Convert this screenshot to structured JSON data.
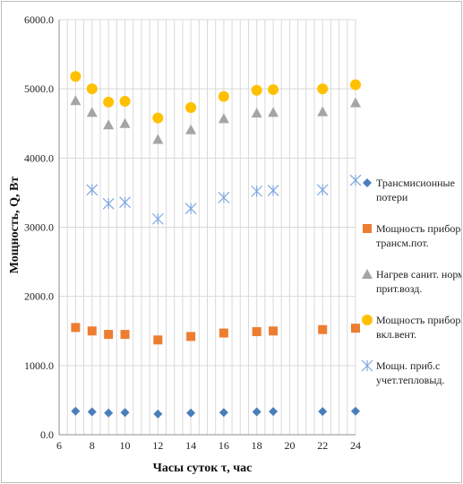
{
  "chart_data": {
    "type": "scatter",
    "xlabel": "Часы суток τ, час",
    "ylabel": "Мощность, Q, Вт",
    "xlim": [
      6,
      24
    ],
    "ylim": [
      0,
      6000
    ],
    "x_major_ticks": [
      6,
      8,
      10,
      12,
      14,
      16,
      18,
      20,
      22,
      24
    ],
    "x_minor_step": 0.5,
    "y_ticks": [
      0,
      1000,
      2000,
      3000,
      4000,
      5000,
      6000
    ],
    "y_tick_labels": [
      "0.0",
      "1000.0",
      "2000.0",
      "3000.0",
      "4000.0",
      "5000.0",
      "6000.0"
    ],
    "grid": true,
    "legend_position": "right",
    "x": [
      7,
      8,
      9,
      10,
      12,
      14,
      16,
      18,
      19,
      22,
      24
    ],
    "series": [
      {
        "name": "Трансмисионные потери",
        "legend_lines": [
          "Трансмисионные",
          "потери"
        ],
        "marker": "diamond",
        "color": "#4a7ebb",
        "values": [
          340,
          330,
          315,
          320,
          300,
          315,
          320,
          330,
          335,
          335,
          340
        ]
      },
      {
        "name": "Мощность прибора с трансм.пот.",
        "legend_lines": [
          "Мощность прибора с",
          "трансм.пот."
        ],
        "marker": "square",
        "color": "#ed7d31",
        "values": [
          1550,
          1500,
          1450,
          1450,
          1370,
          1420,
          1470,
          1490,
          1500,
          1520,
          1540
        ]
      },
      {
        "name": "Нагрев санит. нормы прит.возд.",
        "legend_lines": [
          "Нагрев санит. нормы",
          "прит.возд."
        ],
        "marker": "triangle",
        "color": "#a5a5a5",
        "values": [
          4830,
          4660,
          4480,
          4500,
          4270,
          4410,
          4570,
          4650,
          4660,
          4670,
          4800
        ]
      },
      {
        "name": "Мощность прибора с вкл.вент.",
        "legend_lines": [
          "Мощность прибора с",
          "вкл.вент."
        ],
        "marker": "circle",
        "color": "#ffc000",
        "values": [
          5180,
          5000,
          4810,
          4820,
          4580,
          4730,
          4890,
          4980,
          4990,
          5000,
          5060
        ]
      },
      {
        "name": "Мощн. приб.с учет.тепловыд.",
        "legend_lines": [
          "Мощн. приб.с",
          "учет.тепловыд."
        ],
        "marker": "star",
        "color": "#7ea6e0",
        "x": [
          8,
          9,
          10,
          12,
          14,
          16,
          18,
          19,
          22,
          24
        ],
        "values": [
          3540,
          3340,
          3360,
          3120,
          3270,
          3430,
          3520,
          3530,
          3540,
          3680
        ]
      }
    ]
  }
}
